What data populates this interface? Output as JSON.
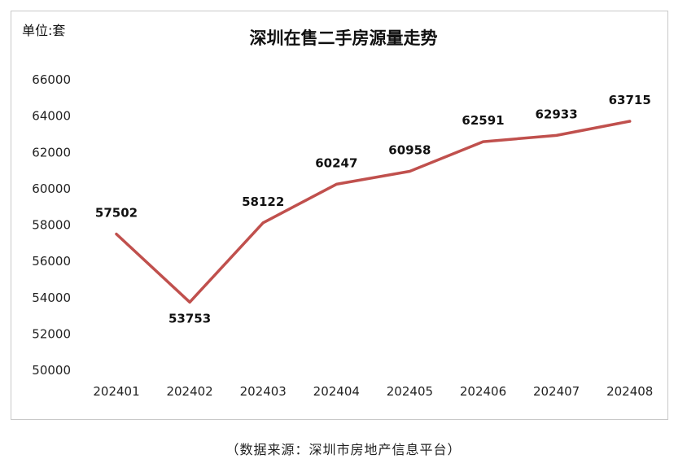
{
  "unit_label": "单位:套",
  "source_note": "（数据来源：深圳市房地产信息平台）",
  "chart_data": {
    "type": "line",
    "title": "深圳在售二手房源量走势",
    "categories": [
      "202401",
      "202402",
      "202403",
      "202404",
      "202405",
      "202406",
      "202407",
      "202408"
    ],
    "series": [
      {
        "values": [
          57502,
          53753,
          58122,
          60247,
          60958,
          62591,
          62933,
          63715
        ],
        "color": "#c0504d"
      }
    ],
    "yticks": [
      50000,
      52000,
      54000,
      56000,
      58000,
      60000,
      62000,
      64000,
      66000
    ],
    "ylim": [
      50000,
      66000
    ],
    "grid": false,
    "legend": "none"
  }
}
